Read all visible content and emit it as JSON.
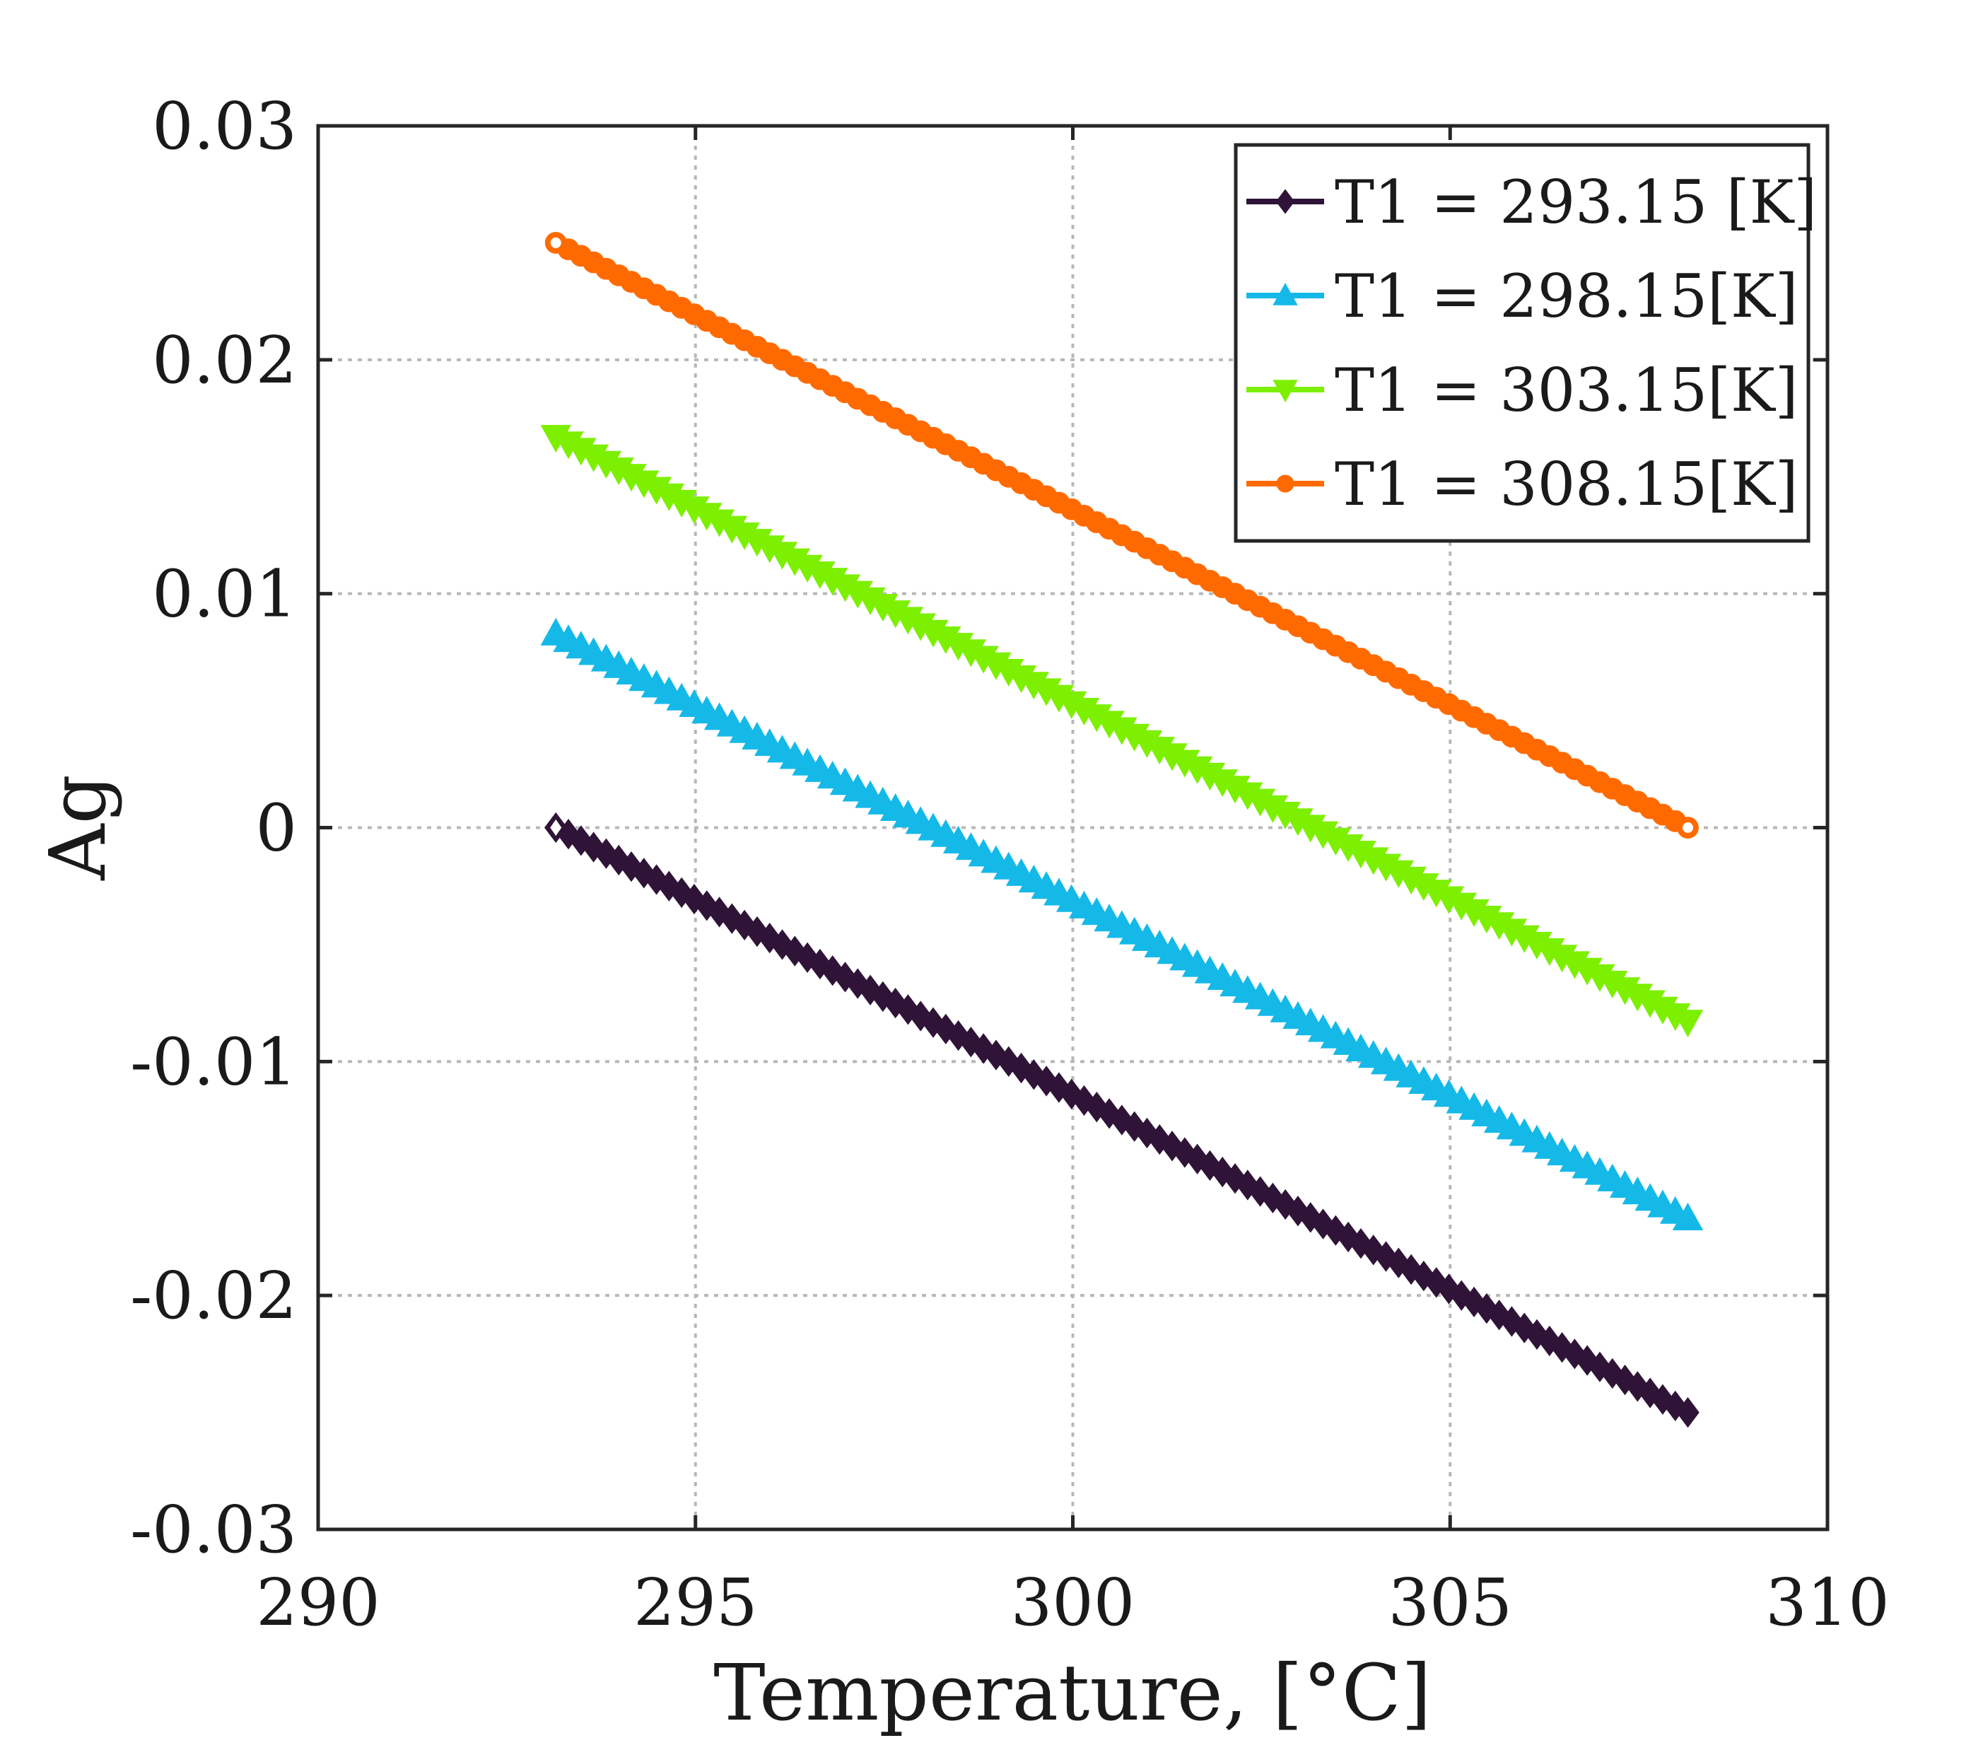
{
  "chart_data": {
    "type": "line",
    "title": "",
    "xlabel": "Temperature, [°C]",
    "ylabel": "Ag",
    "xlim": [
      290,
      310
    ],
    "ylim": [
      -0.03,
      0.03
    ],
    "xticks": [
      290,
      295,
      300,
      305,
      310
    ],
    "xtick_labels": [
      "290",
      "295",
      "300",
      "305",
      "310"
    ],
    "yticks": [
      -0.03,
      -0.02,
      -0.01,
      0,
      0.01,
      0.02,
      0.03
    ],
    "ytick_labels": [
      "-0.03",
      "-0.02",
      "-0.01",
      "0",
      "0.01",
      "0.02",
      "0.03"
    ],
    "grid": true,
    "legend_position": "top-right",
    "x": [
      293.15,
      308.15
    ],
    "series": [
      {
        "name": "T1 = 293.15 [K]",
        "values": [
          0.0,
          -0.025
        ],
        "color": "#2f1438",
        "marker": "diamond"
      },
      {
        "name": "T1 = 298.15[K]",
        "values": [
          0.0083,
          -0.0167
        ],
        "color": "#14b9e8",
        "marker": "triangle-up"
      },
      {
        "name": "T1 = 303.15[K]",
        "values": [
          0.0167,
          -0.0083
        ],
        "color": "#7cf000",
        "marker": "triangle-down"
      },
      {
        "name": "T1 = 308.15[K]",
        "values": [
          0.025,
          0.0
        ],
        "color": "#ff6a00",
        "marker": "circle"
      }
    ],
    "markers_per_series": 91
  }
}
